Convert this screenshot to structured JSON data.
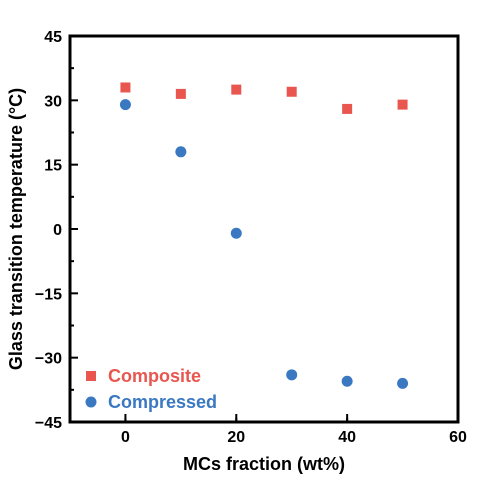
{
  "chart_data": {
    "type": "scatter",
    "xlabel": "MCs fraction (wt%)",
    "ylabel": "Glass transition temperature (°C)",
    "xlim": [
      -10,
      60
    ],
    "ylim": [
      -45,
      45
    ],
    "xticks": [
      0,
      20,
      40,
      60
    ],
    "xtick_labels": [
      "0",
      "20",
      "40",
      "60"
    ],
    "yticks": [
      -45,
      -30,
      -15,
      0,
      15,
      30,
      45
    ],
    "ytick_labels": [
      "−45",
      "−30",
      "−15",
      "0",
      "15",
      "30",
      "45"
    ],
    "grid": false,
    "legend_position": "bottom-left",
    "series": [
      {
        "name": "Composite",
        "marker": "square",
        "color": "#e8564f",
        "x": [
          0,
          10,
          20,
          30,
          40,
          50
        ],
        "y": [
          33,
          31.5,
          32.5,
          32,
          28,
          29
        ]
      },
      {
        "name": "Compressed",
        "marker": "circle",
        "color": "#3a78c2",
        "x": [
          0,
          10,
          20,
          30,
          40,
          50
        ],
        "y": [
          29,
          18,
          -1,
          -34,
          -35.5,
          -36
        ]
      }
    ]
  }
}
